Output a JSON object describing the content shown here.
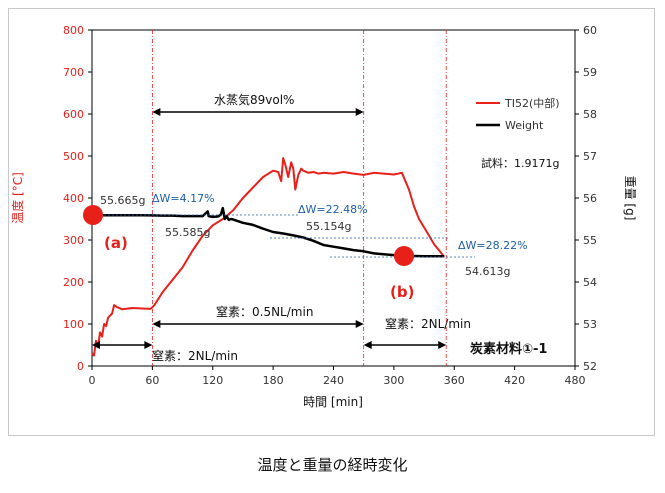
{
  "caption": "温度と重量の経時変化",
  "chart_data": {
    "type": "line",
    "xlabel": "時間 [min]",
    "ylabel_left": "温度 [°C]",
    "ylabel_right": "重量 [g]",
    "xlim": [
      0,
      480
    ],
    "ylim_left": [
      0,
      800
    ],
    "ylim_right": [
      52,
      60
    ],
    "x_ticks": [
      "0",
      "60",
      "120",
      "180",
      "240",
      "300",
      "360",
      "420",
      "480"
    ],
    "y_left_ticks": [
      "0",
      "100",
      "200",
      "300",
      "400",
      "500",
      "600",
      "700",
      "800"
    ],
    "y_right_ticks": [
      "52",
      "53",
      "54",
      "55",
      "56",
      "57",
      "58",
      "59",
      "60"
    ],
    "grid": false,
    "legend_position": "top-right",
    "colors": {
      "temperature": "#e8201a",
      "weight": "#000000",
      "annotation": "#1f5fa8",
      "marker": "#e8201a"
    },
    "series": [
      {
        "name": "TI52(中部)",
        "axis": "left",
        "x": [
          0,
          2,
          4,
          6,
          8,
          10,
          12,
          14,
          16,
          18,
          20,
          22,
          25,
          30,
          40,
          50,
          58,
          60,
          62,
          70,
          80,
          90,
          100,
          110,
          120,
          130,
          140,
          150,
          160,
          170,
          180,
          185,
          188,
          190,
          192,
          195,
          198,
          200,
          202,
          205,
          208,
          210,
          215,
          220,
          225,
          230,
          240,
          250,
          260,
          270,
          280,
          290,
          300,
          308,
          315,
          320,
          325,
          330,
          335,
          340,
          345,
          350
        ],
        "values": [
          30,
          25,
          60,
          45,
          80,
          70,
          100,
          95,
          115,
          120,
          125,
          145,
          140,
          135,
          138,
          137,
          136,
          140,
          145,
          175,
          205,
          235,
          275,
          310,
          335,
          350,
          370,
          400,
          425,
          450,
          465,
          462,
          440,
          495,
          480,
          450,
          485,
          470,
          420,
          455,
          470,
          465,
          460,
          462,
          458,
          460,
          458,
          462,
          458,
          455,
          460,
          458,
          456,
          460,
          420,
          380,
          350,
          330,
          310,
          290,
          275,
          260
        ]
      },
      {
        "name": "Weight",
        "axis": "right",
        "x": [
          0,
          2,
          5,
          10,
          20,
          30,
          40,
          50,
          60,
          70,
          80,
          90,
          100,
          110,
          115,
          116,
          118,
          120,
          125,
          128,
          130,
          132,
          134,
          136,
          138,
          140,
          150,
          160,
          170,
          180,
          190,
          200,
          210,
          220,
          230,
          240,
          250,
          260,
          270,
          280,
          290,
          300,
          310,
          320,
          330,
          340,
          350
        ],
        "values": [
          55.66,
          55.62,
          55.6,
          55.59,
          55.59,
          55.59,
          55.59,
          55.59,
          55.585,
          55.58,
          55.58,
          55.57,
          55.57,
          55.57,
          55.68,
          55.57,
          55.56,
          55.55,
          55.56,
          55.6,
          55.76,
          55.5,
          55.56,
          55.48,
          55.5,
          55.49,
          55.41,
          55.36,
          55.27,
          55.19,
          55.154,
          55.11,
          55.06,
          54.98,
          54.88,
          54.84,
          54.8,
          54.76,
          54.73,
          54.68,
          54.66,
          54.64,
          54.63,
          54.62,
          54.613,
          54.613,
          54.613
        ]
      }
    ],
    "vertical_lines_x": [
      60,
      270,
      352
    ],
    "annotations": {
      "steam_label": "水蒸気89vol%",
      "n2_05_label": "窒素：0.5NL/min",
      "n2_2_start_label": "窒素：2NL/min",
      "n2_2_end_label": "窒素：2NL/min",
      "material_label": "炭素材料①-1",
      "sample_label": "試料：1.9171g",
      "w1": "55.665g",
      "w2": "55.585g",
      "w3": "55.154g",
      "w4": "54.613g",
      "dw1": "ΔW=4.17%",
      "dw2": "ΔW=22.48%",
      "dw3": "ΔW=28.22%",
      "point_a": "(a)",
      "point_b": "(b)"
    },
    "markers": [
      {
        "label": "(a)",
        "x": 2,
        "weight": 55.665
      },
      {
        "label": "(b)",
        "x": 310,
        "weight": 54.613
      }
    ]
  }
}
